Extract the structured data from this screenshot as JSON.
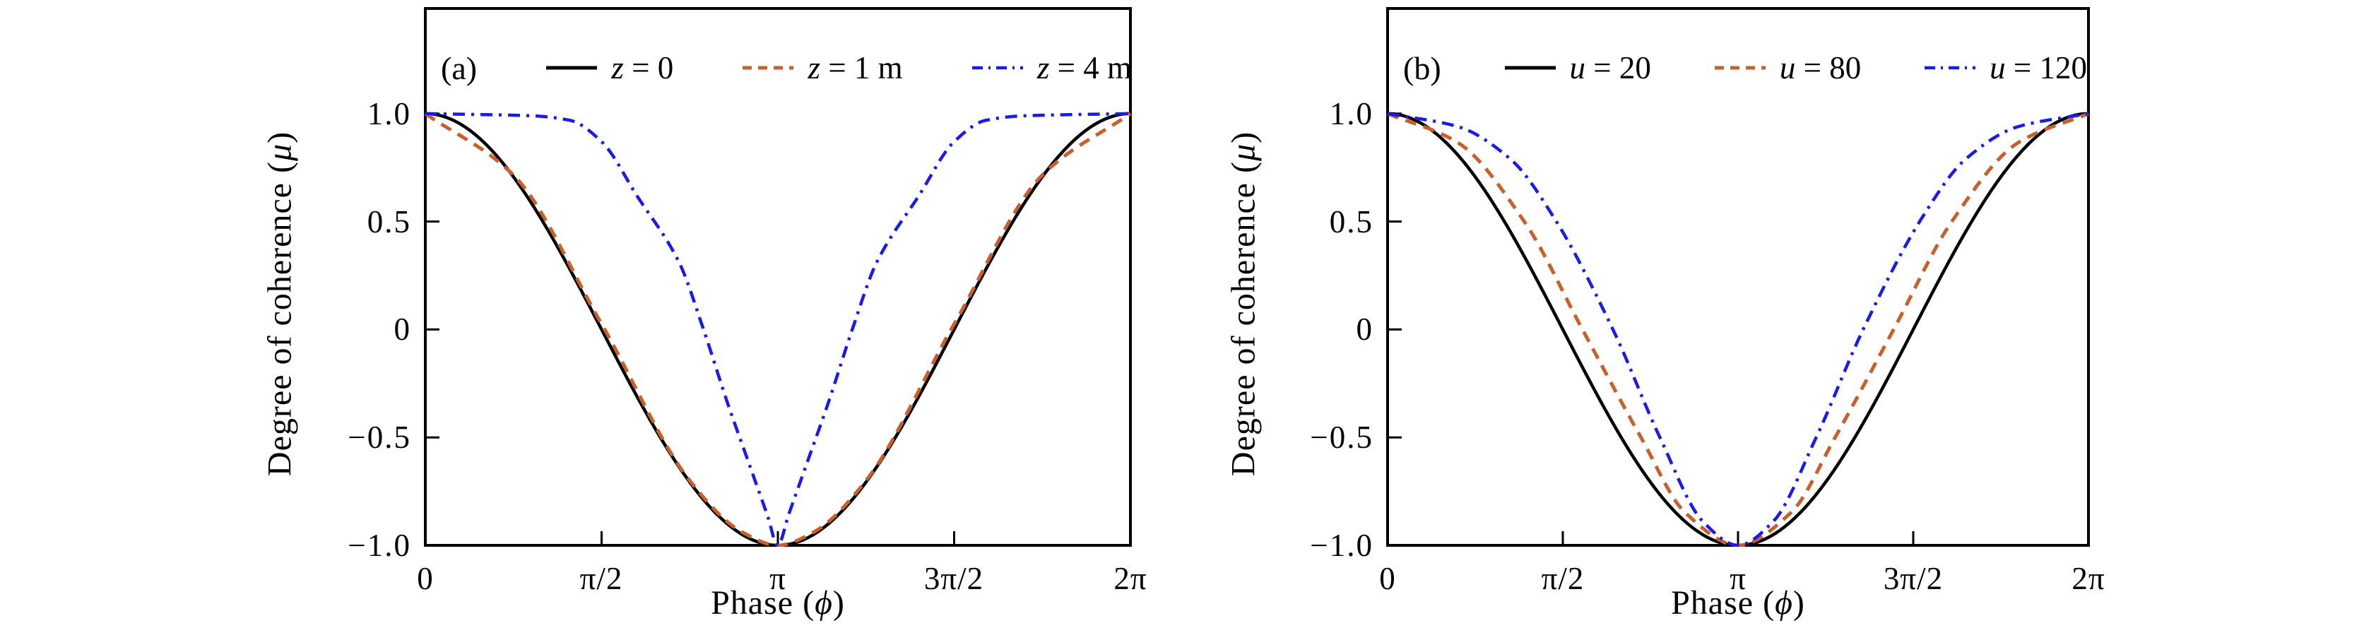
{
  "figure": {
    "background": "#ffffff",
    "x_label": {
      "prefix": "Phase (",
      "symbol": "ϕ",
      "suffix": ")"
    },
    "y_label": {
      "prefix": "Degree of coherence (",
      "symbol": "μ",
      "suffix": ")"
    },
    "panels": [
      {
        "label": "(a)",
        "x_tick_labels": [
          "0",
          "π/2",
          "π",
          "3π/2",
          "2π"
        ],
        "y_tick_labels": [
          "1.0",
          "0.5",
          "0",
          "−0.5",
          "−1.0"
        ],
        "legend": [
          {
            "var": "z",
            "rest": " = 0",
            "color": "#000000",
            "style": "solid"
          },
          {
            "var": "z",
            "rest": " = 1 m",
            "color": "#c8602d",
            "style": "dashed"
          },
          {
            "var": "z",
            "rest": " = 4 m",
            "color": "#1b1be8",
            "style": "dashdot"
          }
        ]
      },
      {
        "label": "(b)",
        "x_tick_labels": [
          "0",
          "π/2",
          "π",
          "3π/2",
          "2π"
        ],
        "y_tick_labels": [
          "1.0",
          "0.5",
          "0",
          "−0.5",
          "−1.0"
        ],
        "legend": [
          {
            "var": "u",
            "rest": " = 20",
            "color": "#000000",
            "style": "solid"
          },
          {
            "var": "u",
            "rest": " = 80",
            "color": "#c8602d",
            "style": "dashed"
          },
          {
            "var": "u",
            "rest": " = 120",
            "color": "#1b1be8",
            "style": "dashdot"
          }
        ]
      }
    ]
  },
  "chart_data": [
    {
      "type": "line",
      "panel": "(a)",
      "xlabel": "Phase (ϕ)",
      "ylabel": "Degree of coherence (μ)",
      "x_unit": "pi",
      "xlim_pi": [
        0,
        2
      ],
      "ylim": [
        -1,
        1.487
      ],
      "x_ticks_pi": [
        0,
        0.5,
        1,
        1.5,
        2
      ],
      "x_tick_labels": [
        "0",
        "π/2",
        "π",
        "3π/2",
        "2π"
      ],
      "y_ticks": [
        1.0,
        0.5,
        0,
        -0.5,
        -1.0
      ],
      "grid": false,
      "legend_position": "top",
      "frame_color": "#000000",
      "series": [
        {
          "name": "z = 0",
          "color": "#000000",
          "style": "solid",
          "width": 4.5,
          "model": "cos",
          "points_pi_mu": [
            [
              0,
              1
            ],
            [
              0.25,
              0.707
            ],
            [
              0.5,
              0
            ],
            [
              0.75,
              -0.707
            ],
            [
              1,
              -1
            ],
            [
              1.25,
              -0.707
            ],
            [
              1.5,
              0
            ],
            [
              1.75,
              0.707
            ],
            [
              2,
              1
            ]
          ]
        },
        {
          "name": "z = 1 m",
          "color": "#c8602d",
          "style": "dashed",
          "width": 5,
          "model": "points",
          "points_pi_mu": [
            [
              0,
              1
            ],
            [
              0.25,
              0.715
            ],
            [
              0.5,
              0.025
            ],
            [
              0.75,
              -0.7
            ],
            [
              0.9,
              -0.94
            ],
            [
              1,
              -1
            ],
            [
              1.1,
              -0.94
            ],
            [
              1.25,
              -0.7
            ],
            [
              1.5,
              0.025
            ],
            [
              1.75,
              0.715
            ],
            [
              2,
              1
            ]
          ]
        },
        {
          "name": "z = 4 m",
          "color": "#1b1be8",
          "style": "dashdot",
          "width": 4.5,
          "model": "points",
          "points_pi_mu": [
            [
              0,
              1
            ],
            [
              0.3,
              0.99
            ],
            [
              0.41,
              0.969
            ],
            [
              0.5,
              0.87
            ],
            [
              0.6,
              0.62
            ],
            [
              0.72,
              0.31
            ],
            [
              0.789,
              0
            ],
            [
              0.855,
              -0.33
            ],
            [
              0.92,
              -0.63
            ],
            [
              0.97,
              -0.86
            ],
            [
              1,
              -1
            ],
            [
              1.03,
              -0.86
            ],
            [
              1.08,
              -0.63
            ],
            [
              1.145,
              -0.33
            ],
            [
              1.211,
              0
            ],
            [
              1.28,
              0.31
            ],
            [
              1.4,
              0.62
            ],
            [
              1.5,
              0.87
            ],
            [
              1.59,
              0.969
            ],
            [
              1.7,
              0.99
            ],
            [
              2,
              1
            ]
          ]
        }
      ]
    },
    {
      "type": "line",
      "panel": "(b)",
      "xlabel": "Phase (ϕ)",
      "ylabel": "Degree of coherence (μ)",
      "x_unit": "pi",
      "xlim_pi": [
        0,
        2
      ],
      "ylim": [
        -1,
        1.487
      ],
      "x_ticks_pi": [
        0,
        0.5,
        1,
        1.5,
        2
      ],
      "x_tick_labels": [
        "0",
        "π/2",
        "π",
        "3π/2",
        "2π"
      ],
      "y_ticks": [
        1.0,
        0.5,
        0,
        -0.5,
        -1.0
      ],
      "grid": false,
      "legend_position": "top",
      "frame_color": "#000000",
      "series": [
        {
          "name": "u = 20",
          "color": "#000000",
          "style": "solid",
          "width": 4.5,
          "model": "cos",
          "points_pi_mu": [
            [
              0,
              1
            ],
            [
              0.25,
              0.707
            ],
            [
              0.5,
              0
            ],
            [
              0.75,
              -0.707
            ],
            [
              1,
              -1
            ],
            [
              1.25,
              -0.707
            ],
            [
              1.5,
              0
            ],
            [
              1.75,
              0.707
            ],
            [
              2,
              1
            ]
          ]
        },
        {
          "name": "u = 80",
          "color": "#c8602d",
          "style": "dashed",
          "width": 5,
          "model": "points",
          "points_pi_mu": [
            [
              0,
              1
            ],
            [
              0.2,
              0.866
            ],
            [
              0.39,
              0.5
            ],
            [
              0.556,
              0
            ],
            [
              0.723,
              -0.5
            ],
            [
              0.85,
              -0.85
            ],
            [
              1,
              -1
            ],
            [
              1.15,
              -0.85
            ],
            [
              1.277,
              -0.5
            ],
            [
              1.444,
              0
            ],
            [
              1.61,
              0.5
            ],
            [
              1.8,
              0.866
            ],
            [
              2,
              1
            ]
          ]
        },
        {
          "name": "u = 120",
          "color": "#1b1be8",
          "style": "dashdot",
          "width": 4.5,
          "model": "points",
          "points_pi_mu": [
            [
              0,
              1
            ],
            [
              0.2,
              0.94
            ],
            [
              0.35,
              0.79
            ],
            [
              0.474,
              0.52
            ],
            [
              0.643,
              0
            ],
            [
              0.777,
              -0.5
            ],
            [
              0.9,
              -0.89
            ],
            [
              1,
              -1
            ],
            [
              1.1,
              -0.89
            ],
            [
              1.223,
              -0.5
            ],
            [
              1.357,
              0
            ],
            [
              1.526,
              0.52
            ],
            [
              1.65,
              0.79
            ],
            [
              1.8,
              0.94
            ],
            [
              2,
              1
            ]
          ]
        }
      ]
    }
  ]
}
